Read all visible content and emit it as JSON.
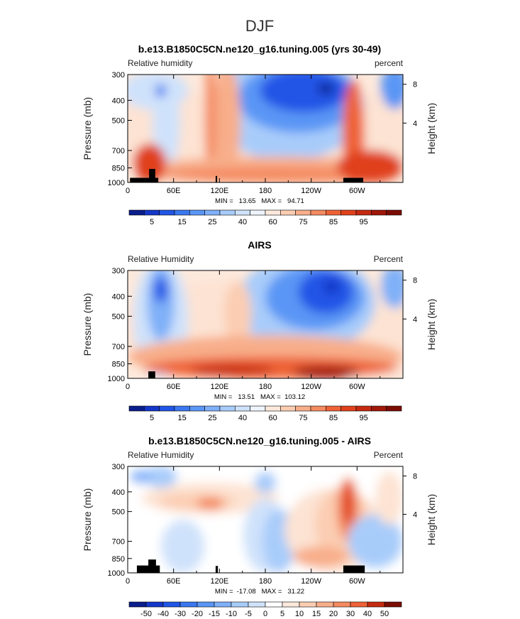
{
  "figure": {
    "title": "DJF"
  },
  "chart_data": [
    {
      "type": "heatmap",
      "title": "b.e13.B1850C5CN.ne120_g16.tuning.005 (yrs 30-49)",
      "left_label": "Relative humidity",
      "right_label": "percent",
      "ylabel": "Pressure (mb)",
      "right_axis_label": "Height (km)",
      "x_ticks": [
        "0",
        "60E",
        "120E",
        "180",
        "120W",
        "60W"
      ],
      "y_ticks": [
        "300",
        "400",
        "500",
        "700",
        "850",
        "1000"
      ],
      "height_ticks": [
        "8",
        "4"
      ],
      "xlim": [
        0,
        360
      ],
      "ylim": [
        1000,
        300
      ],
      "stats": "MIN =   13.65   MAX =   94.71",
      "colorbar_labels": [
        "5",
        "15",
        "25",
        "40",
        "60",
        "75",
        "85",
        "95"
      ],
      "colorbar_colors": [
        "#0a1e8c",
        "#1437c8",
        "#2155e6",
        "#3b78f0",
        "#5a96f5",
        "#7fb0f8",
        "#a8ccfa",
        "#cfe2fb",
        "#eef4fd",
        "#fde9dc",
        "#fbcdb2",
        "#f8ae8a",
        "#f48a60",
        "#ee6236",
        "#e0411b",
        "#c52a10",
        "#a01808",
        "#7a0c04"
      ]
    },
    {
      "type": "heatmap",
      "title": "AIRS",
      "left_label": "Relative Humidity",
      "right_label": "Percent",
      "ylabel": "Pressure (mb)",
      "right_axis_label": "Height (km)",
      "x_ticks": [
        "0",
        "60E",
        "120E",
        "180",
        "120W",
        "60W"
      ],
      "y_ticks": [
        "300",
        "400",
        "500",
        "700",
        "850",
        "1000"
      ],
      "height_ticks": [
        "8",
        "4"
      ],
      "xlim": [
        0,
        360
      ],
      "ylim": [
        1000,
        300
      ],
      "stats": "MIN =   13.51   MAX =  103.12",
      "colorbar_labels": [
        "5",
        "15",
        "25",
        "40",
        "60",
        "75",
        "85",
        "95"
      ],
      "colorbar_colors": [
        "#0a1e8c",
        "#1437c8",
        "#2155e6",
        "#3b78f0",
        "#5a96f5",
        "#7fb0f8",
        "#a8ccfa",
        "#cfe2fb",
        "#eef4fd",
        "#fde9dc",
        "#fbcdb2",
        "#f8ae8a",
        "#f48a60",
        "#ee6236",
        "#e0411b",
        "#c52a10",
        "#a01808",
        "#7a0c04"
      ]
    },
    {
      "type": "heatmap",
      "title": "b.e13.B1850C5CN.ne120_g16.tuning.005 - AIRS",
      "left_label": "Relative Humidity",
      "right_label": "Percent",
      "ylabel": "Pressure (mb)",
      "right_axis_label": "Height (km)",
      "x_ticks": [
        "0",
        "60E",
        "120E",
        "180",
        "120W",
        "60W"
      ],
      "y_ticks": [
        "300",
        "400",
        "500",
        "700",
        "850",
        "1000"
      ],
      "height_ticks": [
        "8",
        "4"
      ],
      "xlim": [
        0,
        360
      ],
      "ylim": [
        1000,
        300
      ],
      "stats": "MIN =  -17.08   MAX =   31.22",
      "colorbar_labels": [
        "-50",
        "-40",
        "-30",
        "-20",
        "-15",
        "-10",
        "-5",
        "0",
        "5",
        "10",
        "15",
        "20",
        "30",
        "40",
        "50"
      ],
      "colorbar_colors": [
        "#0a1e8c",
        "#1437c8",
        "#2155e6",
        "#3b78f0",
        "#5a96f5",
        "#7fb0f8",
        "#a8ccfa",
        "#cfe2fb",
        "#ffffff",
        "#fde9dc",
        "#fbcdb2",
        "#f8ae8a",
        "#f48a60",
        "#ee6236",
        "#c52a10",
        "#7a0c04"
      ]
    }
  ]
}
